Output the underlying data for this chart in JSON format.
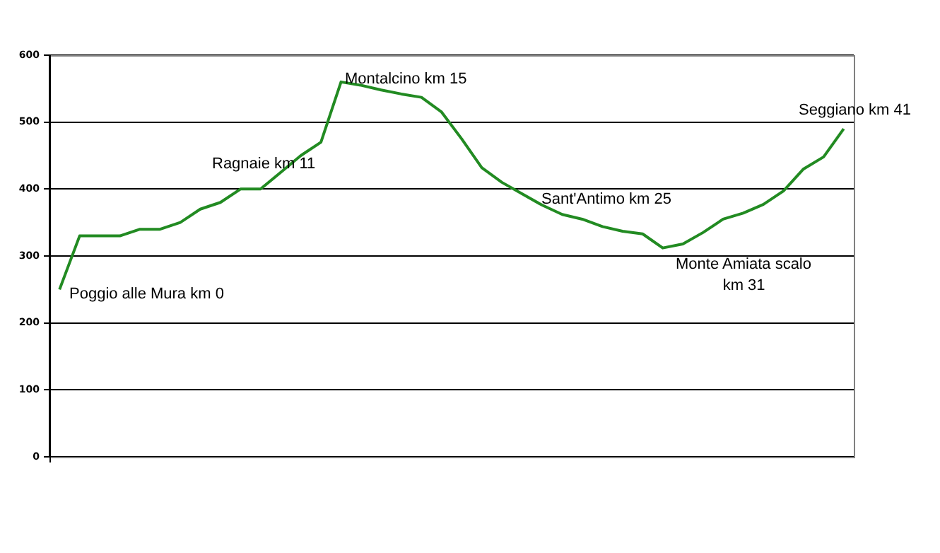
{
  "chart_data": {
    "type": "line",
    "categories": [
      null,
      null,
      null,
      null,
      null,
      null,
      null,
      null,
      null,
      null,
      null,
      null,
      null,
      null,
      null,
      null,
      null,
      null,
      null,
      null,
      null,
      null,
      null,
      null,
      null,
      null,
      null,
      null,
      null,
      null,
      null,
      null,
      null,
      null,
      null,
      null,
      null,
      null,
      null,
      null
    ],
    "series": [
      {
        "color": "#228b22",
        "values": [
          250,
          330,
          330,
          330,
          340,
          340,
          350,
          370,
          380,
          400,
          400,
          425,
          450,
          470,
          560,
          555,
          548,
          542,
          537,
          515,
          475,
          432,
          410,
          393,
          376,
          362,
          355,
          344,
          337,
          333,
          312,
          318,
          335,
          355,
          364,
          377,
          397,
          430,
          448,
          490
        ]
      }
    ],
    "ylim": [
      0,
      600
    ],
    "yticks": [
      0,
      100,
      200,
      300,
      400,
      500,
      600
    ],
    "grid": "y",
    "legend": false,
    "marker": "none",
    "tick_labels": "y",
    "annotations": [
      "Poggio alle Mura km 0",
      "Ragnaie km 11",
      "Montalcino km 15",
      "Sant'Antimo km 25",
      "Monte Amiata scalo km 31",
      "Seggiano km 41"
    ]
  }
}
